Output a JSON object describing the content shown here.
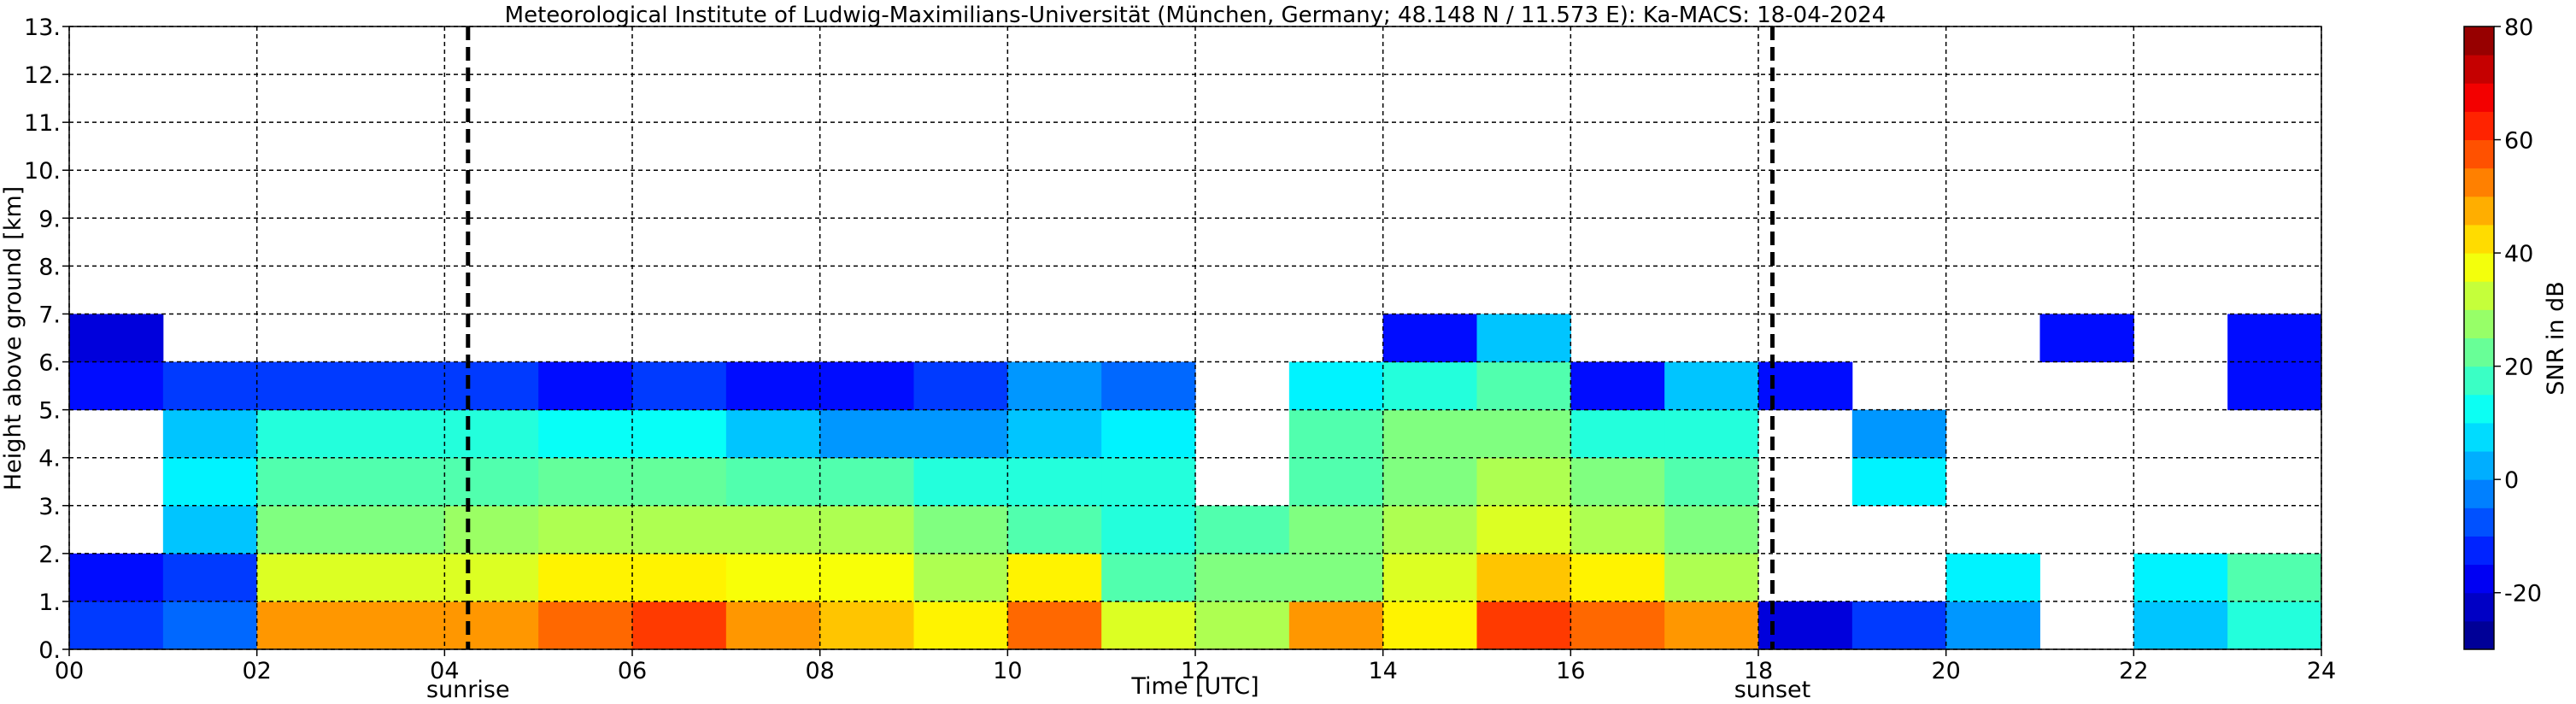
{
  "chart_data": {
    "type": "heatmap",
    "title": "Meteorological Institute of Ludwig-Maximilians-Universität (München, Germany; 48.148 N / 11.573 E):    Ka-MACS: 18-04-2024",
    "x_label": "Time [UTC]",
    "y_label": "Height above ground [km]",
    "colorbar_label": "SNR in dB",
    "colormap": "jet",
    "grid": true,
    "x_edges": [
      0,
      1,
      2,
      3,
      4,
      5,
      6,
      7,
      8,
      9,
      10,
      11,
      12,
      13,
      14,
      15,
      16,
      17,
      18,
      19,
      20,
      21,
      22,
      23,
      24
    ],
    "y_edges": [
      0,
      1,
      2,
      3,
      4,
      5,
      6,
      7
    ],
    "z": [
      [
        -10,
        -5,
        50,
        50,
        50,
        55,
        60,
        50,
        45,
        40,
        55,
        35,
        30,
        50,
        40,
        60,
        55,
        50,
        -20,
        -10,
        0,
        null,
        5,
        15
      ],
      [
        -15,
        -10,
        35,
        35,
        35,
        40,
        40,
        38,
        38,
        30,
        40,
        20,
        25,
        25,
        35,
        45,
        40,
        30,
        null,
        null,
        10,
        null,
        10,
        20
      ],
      [
        null,
        5,
        25,
        25,
        28,
        30,
        30,
        30,
        30,
        25,
        20,
        15,
        20,
        25,
        30,
        35,
        30,
        25,
        null,
        null,
        null,
        null,
        null,
        null
      ],
      [
        null,
        10,
        20,
        20,
        20,
        22,
        22,
        20,
        20,
        15,
        15,
        15,
        null,
        20,
        25,
        30,
        25,
        20,
        null,
        10,
        null,
        null,
        null,
        null
      ],
      [
        null,
        5,
        15,
        15,
        15,
        12,
        12,
        5,
        0,
        0,
        5,
        10,
        null,
        20,
        25,
        25,
        15,
        15,
        null,
        0,
        null,
        null,
        null,
        null
      ],
      [
        -15,
        -10,
        -10,
        -10,
        -10,
        -15,
        -10,
        -15,
        -15,
        -10,
        0,
        -5,
        null,
        10,
        15,
        20,
        -15,
        5,
        -15,
        null,
        null,
        null,
        null,
        -15
      ],
      [
        -20,
        null,
        null,
        null,
        null,
        null,
        null,
        null,
        null,
        null,
        null,
        null,
        null,
        null,
        -15,
        5,
        null,
        null,
        null,
        null,
        null,
        -15,
        null,
        -15
      ]
    ],
    "xlim": [
      0,
      24
    ],
    "ylim": [
      0,
      13
    ],
    "xticks": [
      {
        "value": 0,
        "label": "00"
      },
      {
        "value": 2,
        "label": "02"
      },
      {
        "value": 4,
        "label": "04"
      },
      {
        "value": 6,
        "label": "06"
      },
      {
        "value": 8,
        "label": "08"
      },
      {
        "value": 10,
        "label": "10"
      },
      12,
      14,
      16,
      18,
      20,
      22,
      24
    ],
    "yticks": [
      {
        "value": 0,
        "label": "0."
      },
      {
        "value": 1,
        "label": "1."
      },
      {
        "value": 2,
        "label": "2."
      },
      {
        "value": 3,
        "label": "3."
      },
      {
        "value": 4,
        "label": "4."
      },
      {
        "value": 5,
        "label": "5."
      },
      {
        "value": 6,
        "label": "6."
      },
      {
        "value": 7,
        "label": "7."
      },
      {
        "value": 8,
        "label": "8."
      },
      {
        "value": 9,
        "label": "9."
      },
      {
        "value": 10,
        "label": "10."
      },
      {
        "value": 11,
        "label": "11."
      },
      {
        "value": 12,
        "label": "12."
      },
      {
        "value": 13,
        "label": "13."
      }
    ],
    "zlim": [
      -30,
      80
    ],
    "zticks": [
      -20,
      0,
      20,
      40,
      60,
      80
    ],
    "annotations": [
      {
        "x": 4.25,
        "label": "sunrise"
      },
      {
        "x": 18.15,
        "label": "sunset"
      }
    ]
  }
}
